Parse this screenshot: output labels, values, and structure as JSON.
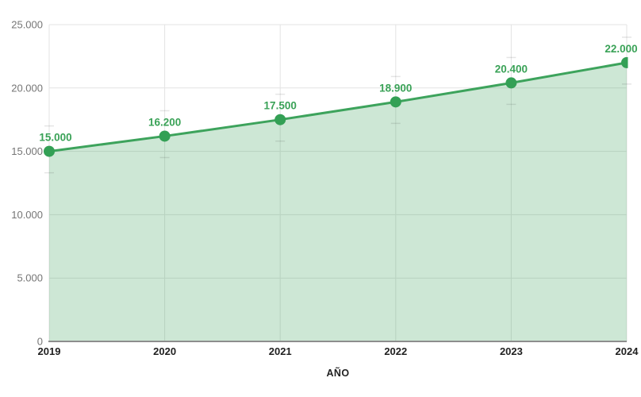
{
  "chart_data": {
    "type": "area",
    "title": "",
    "xlabel": "AÑO",
    "ylabel": "",
    "categories": [
      "2019",
      "2020",
      "2021",
      "2022",
      "2023",
      "2024"
    ],
    "values": [
      15000,
      16200,
      17500,
      18900,
      20400,
      22000
    ],
    "point_labels": [
      "15.000",
      "16.200",
      "17.500",
      "18.900",
      "20.400",
      "22.000"
    ],
    "ylim": [
      0,
      25000
    ],
    "y_ticks": [
      0,
      5000,
      10000,
      15000,
      20000,
      25000
    ],
    "y_tick_labels": [
      "0",
      "5.000",
      "10.000",
      "15.000",
      "20.000",
      "25.000"
    ],
    "grid": true,
    "legend": "none",
    "colors": {
      "line": "#3da35c",
      "point": "#33a055",
      "area_fill": "rgba(61,163,92,0.26)",
      "data_label": "#3aa257",
      "grid_line": "#e3e3e3",
      "axis_line": "#8d8d8d",
      "y_tick_text": "#757575",
      "x_tick_text": "#212121",
      "error_cap": "rgba(0,0,0,0.10)",
      "background": "#ffffff"
    }
  }
}
